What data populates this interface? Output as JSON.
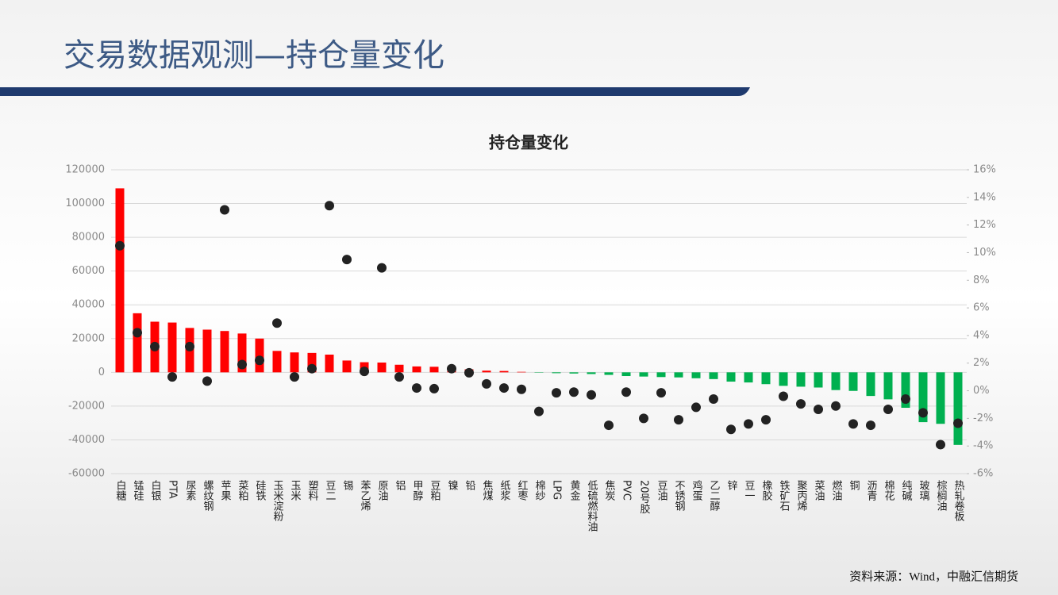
{
  "slide": {
    "title": "交易数据观测—持仓量变化",
    "source": "资料来源：Wind，中融汇信期货"
  },
  "chart_data": {
    "type": "bar",
    "title": "持仓量变化",
    "categories": [
      "白糖",
      "锰硅",
      "白银",
      "PTA",
      "尿素",
      "螺纹钢",
      "苹果",
      "菜粕",
      "硅铁",
      "玉米淀粉",
      "玉米",
      "塑料",
      "豆二",
      "锡",
      "苯乙烯",
      "原油",
      "铝",
      "甲醇",
      "豆粕",
      "镍",
      "铅",
      "焦煤",
      "纸浆",
      "红枣",
      "棉纱",
      "LPG",
      "黄金",
      "低硫燃料油",
      "焦炭",
      "PVC",
      "20号胶",
      "豆油",
      "不锈钢",
      "鸡蛋",
      "乙二醇",
      "锌",
      "豆一",
      "橡胶",
      "铁矿石",
      "聚丙烯",
      "菜油",
      "燃油",
      "铜",
      "沥青",
      "棉花",
      "纯碱",
      "玻璃",
      "棕榈油",
      "热轧卷板"
    ],
    "series": [
      {
        "type": "bar",
        "color": "#ff0000",
        "negative_color": "#00b050",
        "values": [
          109000,
          35000,
          30000,
          29500,
          26300,
          25300,
          24500,
          23000,
          20000,
          12700,
          11800,
          11500,
          10500,
          7000,
          6000,
          5800,
          4500,
          3500,
          3300,
          2500,
          1800,
          1000,
          800,
          300,
          -200,
          -500,
          -700,
          -1000,
          -1500,
          -2200,
          -2500,
          -2800,
          -3000,
          -3500,
          -4000,
          -5500,
          -6000,
          -7000,
          -8000,
          -8500,
          -9000,
          -10500,
          -11000,
          -14000,
          -16000,
          -21000,
          -29500,
          -30500,
          -43000
        ]
      },
      {
        "type": "scatter",
        "axis": "y2",
        "color": "#222222",
        "values": [
          10.5,
          4.2,
          3.2,
          1.0,
          3.2,
          0.7,
          13.1,
          1.9,
          2.2,
          4.9,
          1.0,
          1.6,
          13.4,
          9.5,
          1.4,
          8.9,
          1.0,
          0.2,
          0.15,
          1.6,
          1.3,
          0.5,
          0.2,
          0.1,
          -1.5,
          -0.15,
          -0.1,
          -0.3,
          -2.5,
          -0.1,
          -2.0,
          -0.15,
          -2.1,
          -1.2,
          -0.6,
          -2.8,
          -2.4,
          -2.1,
          -0.4,
          -0.95,
          -1.35,
          -1.1,
          -2.4,
          -2.5,
          -1.35,
          -0.6,
          -1.6,
          -3.9,
          -2.35
        ]
      }
    ],
    "ylim": [
      -60000,
      120000
    ],
    "yticks": [
      -60000,
      -40000,
      -20000,
      0,
      20000,
      40000,
      60000,
      80000,
      100000,
      120000
    ],
    "y2lim": [
      -6,
      16
    ],
    "y2ticks": [
      {
        "value": -6,
        "label": "-6%"
      },
      {
        "value": -4,
        "label": "-4%"
      },
      {
        "value": -2,
        "label": "-2%"
      },
      {
        "value": 0,
        "label": "0%"
      },
      {
        "value": 2,
        "label": "2%"
      },
      {
        "value": 4,
        "label": "4%"
      },
      {
        "value": 6,
        "label": "6%"
      },
      {
        "value": 8,
        "label": "8%"
      },
      {
        "value": 10,
        "label": "10%"
      },
      {
        "value": 12,
        "label": "12%"
      },
      {
        "value": 14,
        "label": "14%"
      },
      {
        "value": 16,
        "label": "16%"
      }
    ],
    "grid": true
  }
}
